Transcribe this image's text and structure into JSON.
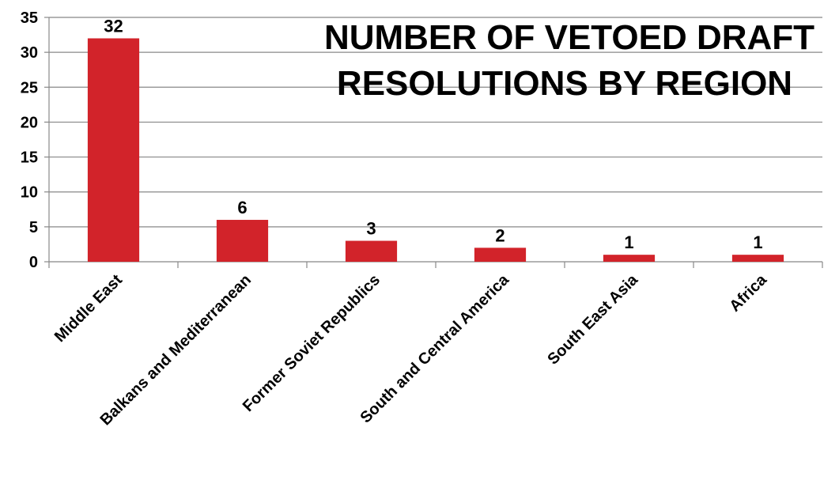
{
  "chart_data": {
    "type": "bar",
    "title_lines": [
      "NUMBER OF VETOED DRAFT",
      "RESOLUTIONS BY REGION"
    ],
    "categories": [
      "Middle East",
      "Balkans and Mediterranean",
      "Former Soviet Republics",
      "South and Central America",
      "South East Asia",
      "Africa"
    ],
    "values": [
      32,
      6,
      3,
      2,
      1,
      1
    ],
    "ylim": [
      0,
      35
    ],
    "yticks": [
      0,
      5,
      10,
      15,
      20,
      25,
      30,
      35
    ],
    "ytick_labels": [
      "0",
      "5",
      "10",
      "15",
      "20",
      "25",
      "30",
      "35"
    ],
    "data_labels": [
      "32",
      "6",
      "3",
      "2",
      "1",
      "1"
    ],
    "grid": true,
    "legend": "none",
    "bar_color": "#d2232a",
    "grid_color": "#888888"
  }
}
